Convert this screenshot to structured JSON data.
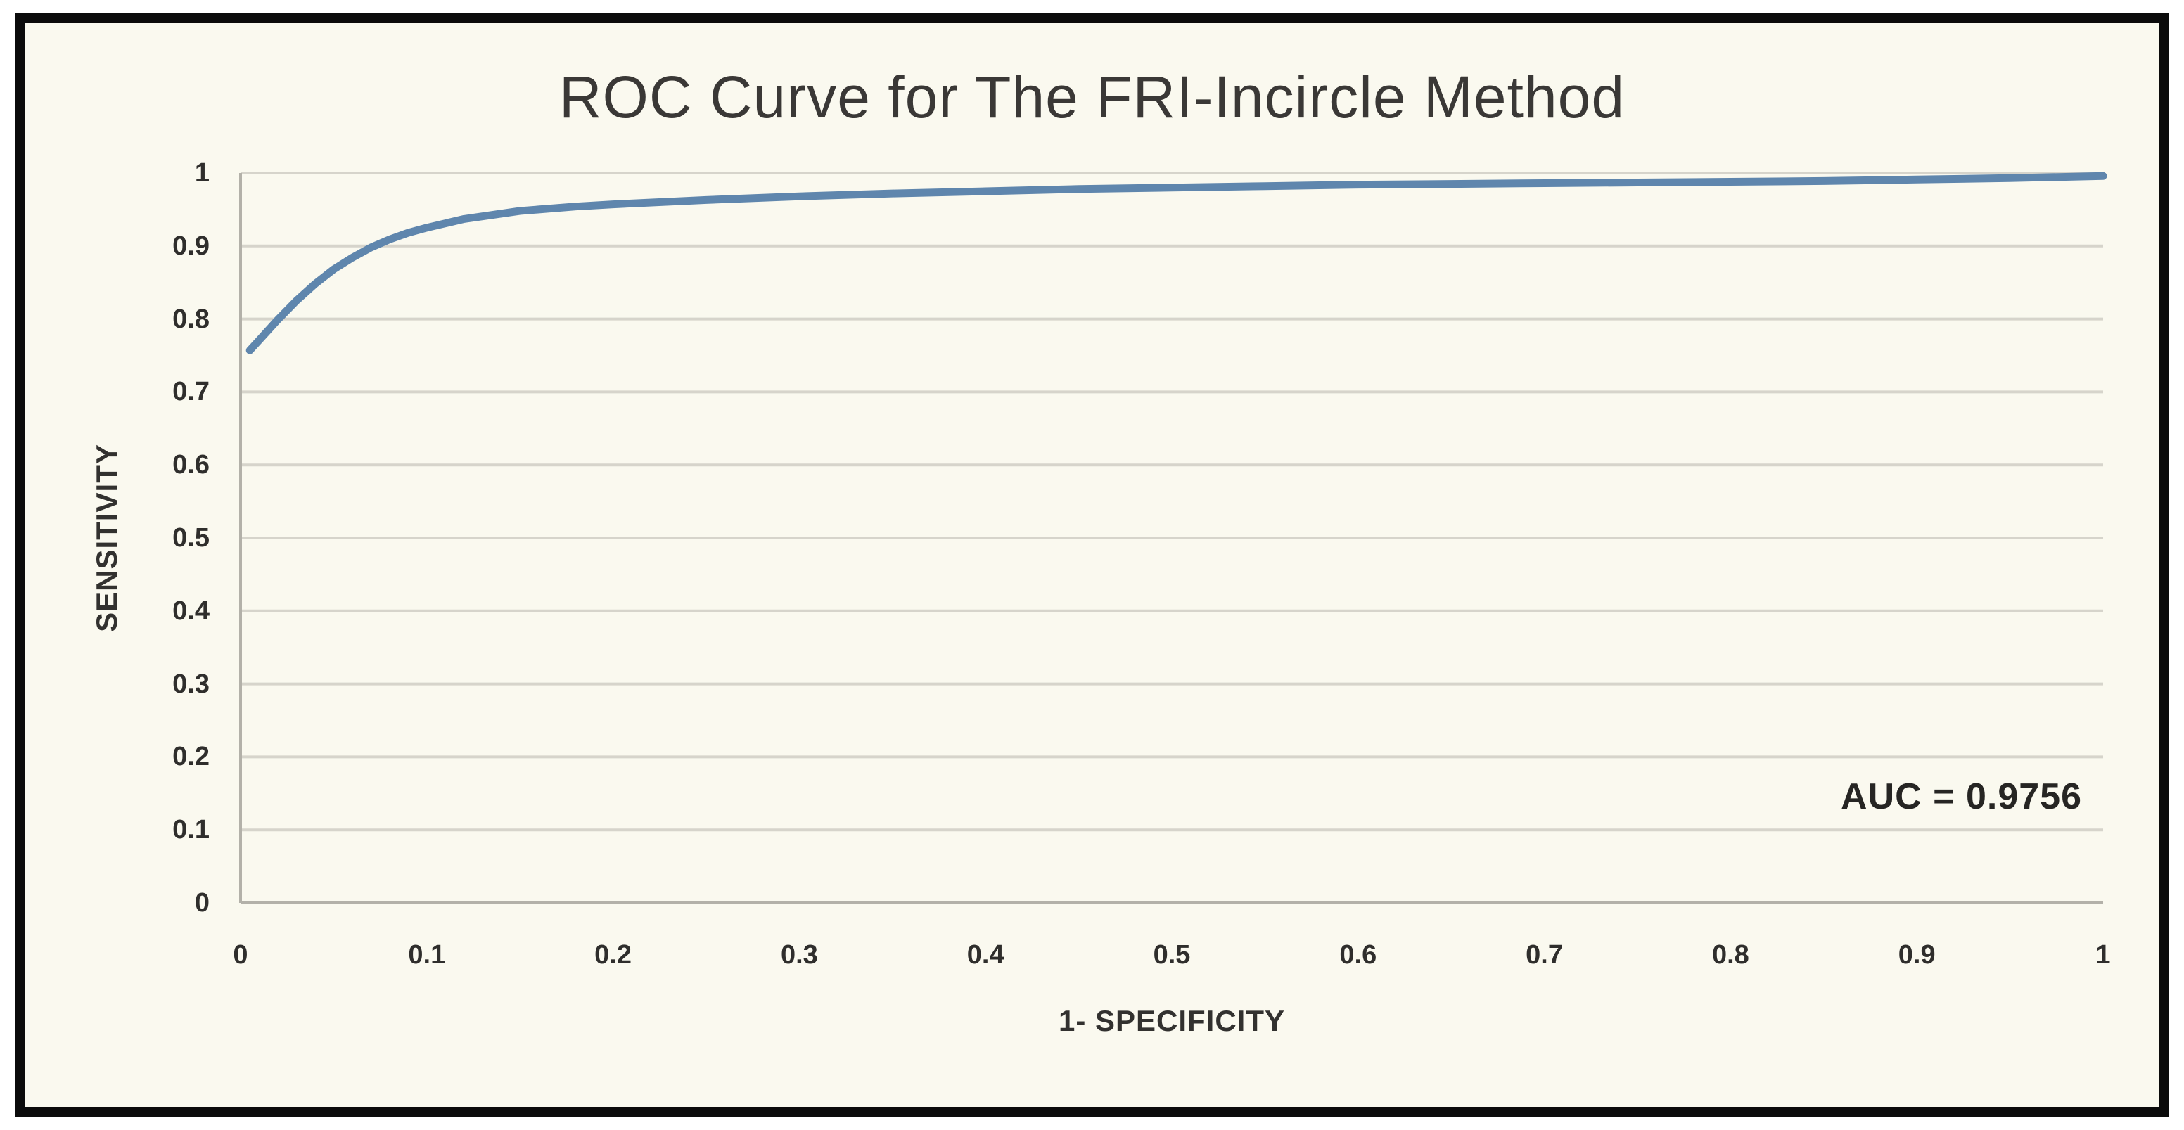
{
  "colors": {
    "page_background": "#ffffff",
    "frame_border": "#0b0b0b",
    "plot_background": "#faf9ef",
    "gridline": "#d6d4cb",
    "axis_line": "#b3b1a9",
    "title_text": "#3a3836",
    "label_text": "#2f2e2c",
    "curve": "#5f86ad"
  },
  "chart_data": {
    "type": "line",
    "title": "ROC Curve for The FRI-Incircle Method",
    "xlabel": "1- SPECIFICITY",
    "ylabel": "SENSITIVITY",
    "annotation": "AUC = 0.9756",
    "auc_value": 0.9756,
    "xlim": [
      0,
      1
    ],
    "ylim": [
      0,
      1
    ],
    "grid": "horizontal-only",
    "legend_position": "none",
    "x_tick_values": [
      0,
      0.1,
      0.2,
      0.3,
      0.4,
      0.5,
      0.6,
      0.7,
      0.8,
      0.9,
      1
    ],
    "x_tick_labels": [
      "0",
      "0.1",
      "0.2",
      "0.3",
      "0.4",
      "0.5",
      "0.6",
      "0.7",
      "0.8",
      "0.9",
      "1"
    ],
    "y_tick_values": [
      0,
      0.1,
      0.2,
      0.3,
      0.4,
      0.5,
      0.6,
      0.7,
      0.8,
      0.9,
      1
    ],
    "y_tick_labels": [
      "0",
      "0.1",
      "0.2",
      "0.3",
      "0.4",
      "0.5",
      "0.6",
      "0.7",
      "0.8",
      "0.9",
      "1"
    ],
    "series": [
      {
        "name": "ROC curve (FRI-Incircle)",
        "color": "#5f86ad",
        "points": [
          [
            0.005,
            0.757
          ],
          [
            0.01,
            0.771
          ],
          [
            0.015,
            0.785
          ],
          [
            0.02,
            0.799
          ],
          [
            0.03,
            0.825
          ],
          [
            0.04,
            0.848
          ],
          [
            0.05,
            0.868
          ],
          [
            0.06,
            0.884
          ],
          [
            0.07,
            0.898
          ],
          [
            0.08,
            0.909
          ],
          [
            0.09,
            0.918
          ],
          [
            0.1,
            0.925
          ],
          [
            0.12,
            0.937
          ],
          [
            0.15,
            0.948
          ],
          [
            0.18,
            0.954
          ],
          [
            0.2,
            0.957
          ],
          [
            0.25,
            0.963
          ],
          [
            0.3,
            0.968
          ],
          [
            0.35,
            0.972
          ],
          [
            0.4,
            0.975
          ],
          [
            0.45,
            0.978
          ],
          [
            0.5,
            0.98
          ],
          [
            0.55,
            0.982
          ],
          [
            0.6,
            0.984
          ],
          [
            0.65,
            0.985
          ],
          [
            0.7,
            0.986
          ],
          [
            0.75,
            0.987
          ],
          [
            0.8,
            0.988
          ],
          [
            0.85,
            0.989
          ],
          [
            0.9,
            0.991
          ],
          [
            0.95,
            0.993
          ],
          [
            1.0,
            0.996
          ]
        ]
      }
    ]
  }
}
